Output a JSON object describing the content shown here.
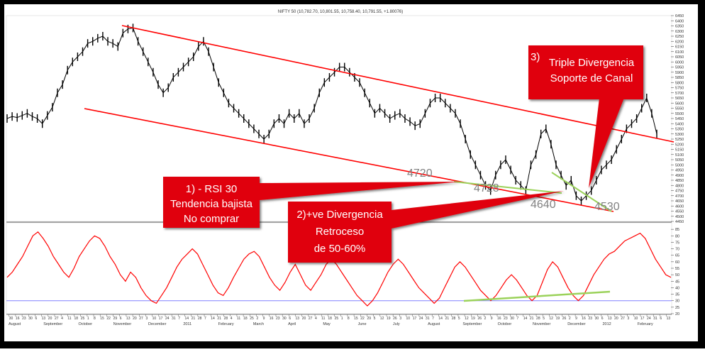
{
  "chart_data": [
    {
      "type": "line",
      "chart_title": "NIFTY 50 (10,782.70, 10,801.55, 10,758.40, 10,791.55, +1.80076)",
      "ylim": [
        4450,
        6450
      ],
      "y_ticks": [
        6450,
        6400,
        6350,
        6300,
        6250,
        6200,
        6150,
        6100,
        6050,
        6000,
        5950,
        5900,
        5850,
        5800,
        5750,
        5700,
        5650,
        5600,
        5550,
        5500,
        5450,
        5400,
        5350,
        5300,
        5250,
        5200,
        5150,
        5100,
        5050,
        5000,
        4950,
        4900,
        4850,
        4800,
        4750,
        4700,
        4650,
        4600,
        4550,
        4500,
        4450
      ],
      "x_month_labels": [
        "August",
        "September",
        "October",
        "November",
        "December",
        "2011",
        "February",
        "March",
        "April",
        "May",
        "June",
        "July",
        "August",
        "September",
        "October",
        "November",
        "December",
        "2012",
        "February"
      ],
      "x_day_labels": [
        "30",
        "16",
        "23",
        "30",
        "6",
        "13",
        "20",
        "27",
        "4",
        "11",
        "18",
        "25",
        "1",
        "8",
        "15",
        "22",
        "29",
        "6",
        "13",
        "20",
        "27",
        "3",
        "10",
        "17",
        "24",
        "31",
        "7",
        "14",
        "21",
        "28",
        "7",
        "14",
        "21",
        "28",
        "4",
        "11",
        "18",
        "25",
        "2",
        "9",
        "16",
        "23",
        "30",
        "6",
        "13",
        "20",
        "27",
        "4",
        "11",
        "18",
        "25",
        "1",
        "8",
        "15",
        "22",
        "29",
        "5",
        "12",
        "19",
        "26",
        "3",
        "10",
        "17",
        "24",
        "31",
        "7",
        "14",
        "21",
        "28",
        "5",
        "12",
        "19",
        "26",
        "2",
        "9",
        "16",
        "23",
        "30",
        "7",
        "14",
        "21",
        "28",
        "5",
        "12",
        "19",
        "26",
        "2",
        "9",
        "16",
        "23",
        "30",
        "6",
        "13",
        "20",
        "27",
        "3",
        "10",
        "17",
        "24",
        "31",
        "6",
        "13"
      ],
      "close": [
        5450,
        5470,
        5460,
        5480,
        5500,
        5470,
        5450,
        5400,
        5480,
        5560,
        5700,
        5780,
        5920,
        6000,
        6050,
        6100,
        6180,
        6200,
        6230,
        6250,
        6200,
        6180,
        6150,
        6280,
        6320,
        6330,
        6200,
        6100,
        6000,
        5900,
        5780,
        5700,
        5750,
        5850,
        5900,
        5950,
        6000,
        6050,
        6150,
        6200,
        6100,
        5950,
        5800,
        5700,
        5600,
        5550,
        5500,
        5450,
        5400,
        5350,
        5300,
        5250,
        5300,
        5400,
        5450,
        5400,
        5500,
        5450,
        5500,
        5400,
        5450,
        5550,
        5700,
        5800,
        5850,
        5900,
        5950,
        5950,
        5900,
        5850,
        5800,
        5700,
        5600,
        5500,
        5550,
        5500,
        5450,
        5480,
        5500,
        5450,
        5420,
        5380,
        5400,
        5500,
        5600,
        5650,
        5650,
        5600,
        5550,
        5500,
        5400,
        5250,
        5100,
        5000,
        4900,
        4800,
        4750,
        4900,
        5000,
        5050,
        4950,
        4850,
        4800,
        4750,
        5000,
        5100,
        5300,
        5350,
        5200,
        5000,
        4900,
        4800,
        4850,
        4700,
        4650,
        4700,
        4750,
        4850,
        4950,
        5000,
        5050,
        5150,
        5250,
        5350,
        5400,
        5450,
        5550,
        5650,
        5500,
        5300
      ],
      "rsi": [
        48,
        52,
        58,
        64,
        72,
        80,
        83,
        78,
        72,
        64,
        58,
        52,
        48,
        55,
        64,
        70,
        76,
        80,
        78,
        72,
        64,
        58,
        50,
        45,
        52,
        48,
        40,
        34,
        30,
        28,
        34,
        40,
        48,
        56,
        62,
        66,
        70,
        66,
        58,
        50,
        42,
        36,
        34,
        40,
        48,
        55,
        62,
        66,
        68,
        64,
        56,
        48,
        42,
        38,
        44,
        52,
        58,
        50,
        42,
        38,
        44,
        50,
        58,
        62,
        58,
        52,
        46,
        40,
        34,
        30,
        26,
        30,
        36,
        44,
        52,
        58,
        62,
        58,
        52,
        46,
        40,
        36,
        32,
        28,
        32,
        40,
        48,
        56,
        60,
        56,
        50,
        44,
        38,
        34,
        30,
        34,
        40,
        46,
        50,
        46,
        40,
        34,
        30,
        34,
        44,
        54,
        60,
        56,
        48,
        40,
        34,
        30,
        34,
        42,
        50,
        56,
        62,
        66,
        68,
        72,
        76,
        78,
        80,
        82,
        78,
        70,
        62,
        56,
        50,
        48
      ],
      "rsi_ylim": [
        20,
        90
      ],
      "rsi_ticks": [
        85,
        80,
        75,
        70,
        65,
        60,
        55,
        50,
        45,
        40,
        35,
        30,
        25,
        20
      ],
      "rsi_reference_level": 30
    }
  ],
  "annotations": {
    "price_labels": [
      "4720",
      "4728",
      "4640",
      "4530"
    ],
    "box1": [
      "1) - RSI 30",
      "Tendencia bajista",
      "No comprar"
    ],
    "box2": [
      "2)+ve Divergencia",
      "Retroceso",
      "de 50-60%"
    ],
    "box3": [
      "Triple Divergencia",
      "Soporte de Canal"
    ],
    "box3_number": "3)"
  },
  "colors": {
    "price_series": "#000000",
    "rsi_series": "#ff0000",
    "channel_lines": "#ff0000",
    "divergence_lines": "#9bd25a",
    "rsi_reference": "#8080ff",
    "callout_fill": "#e0000c",
    "callout_text": "#ffffff",
    "price_label_text": "#808080"
  }
}
